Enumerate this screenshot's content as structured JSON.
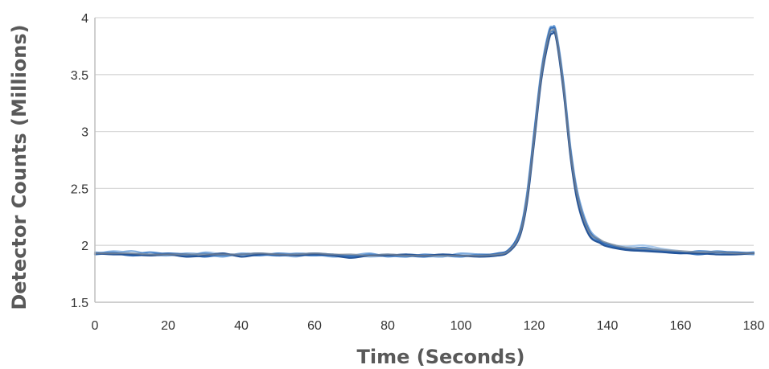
{
  "chart_data": {
    "type": "line",
    "title": "",
    "xlabel": "Time (Seconds)",
    "ylabel": "Detector Counts (Millions)",
    "xlim": [
      0,
      180
    ],
    "ylim": [
      1.5,
      4
    ],
    "x_ticks": [
      "0",
      "20",
      "40",
      "60",
      "80",
      "100",
      "120",
      "140",
      "160",
      "180"
    ],
    "y_ticks": [
      "1.5",
      "2",
      "2.5",
      "3",
      "3.5",
      "4"
    ],
    "grid": "horizontal",
    "legend": "none",
    "colors": [
      "#a3c4e8",
      "#7aa9dc",
      "#4a86cc",
      "#2e6bb8",
      "#1f4f95",
      "#8c8c8c"
    ],
    "series": [
      {
        "x": [
          0,
          5,
          10,
          15,
          20,
          25,
          30,
          35,
          40,
          45,
          50,
          55,
          60,
          65,
          70,
          75,
          80,
          85,
          90,
          95,
          100,
          105,
          110,
          113,
          116,
          118,
          120,
          122,
          124,
          125,
          126,
          128,
          130,
          132,
          135,
          138,
          140,
          145,
          150,
          155,
          160,
          165,
          170,
          175,
          180
        ],
        "values": [
          1.92,
          1.95,
          1.93,
          1.91,
          1.93,
          1.9,
          1.94,
          1.92,
          1.91,
          1.93,
          1.92,
          1.9,
          1.93,
          1.91,
          1.92,
          1.9,
          1.91,
          1.92,
          1.9,
          1.91,
          1.92,
          1.91,
          1.92,
          1.96,
          2.1,
          2.4,
          2.95,
          3.5,
          3.85,
          3.9,
          3.85,
          3.4,
          2.8,
          2.4,
          2.12,
          2.04,
          2.01,
          1.99,
          2.0,
          1.97,
          1.95,
          1.94,
          1.93,
          1.92,
          1.93
        ]
      },
      {
        "x": [
          0,
          5,
          10,
          15,
          20,
          25,
          30,
          35,
          40,
          45,
          50,
          55,
          60,
          65,
          70,
          75,
          80,
          85,
          90,
          95,
          100,
          105,
          110,
          113,
          116,
          118,
          120,
          122,
          124,
          125,
          126,
          128,
          130,
          132,
          135,
          138,
          140,
          145,
          150,
          155,
          160,
          165,
          170,
          175,
          180
        ],
        "values": [
          1.94,
          1.93,
          1.95,
          1.92,
          1.91,
          1.93,
          1.92,
          1.9,
          1.93,
          1.92,
          1.91,
          1.93,
          1.92,
          1.9,
          1.91,
          1.93,
          1.9,
          1.92,
          1.91,
          1.9,
          1.93,
          1.92,
          1.91,
          1.95,
          2.12,
          2.45,
          3.0,
          3.55,
          3.88,
          3.92,
          3.88,
          3.45,
          2.85,
          2.45,
          2.15,
          2.05,
          2.02,
          1.98,
          1.97,
          1.96,
          1.94,
          1.93,
          1.95,
          1.93,
          1.92
        ]
      },
      {
        "x": [
          0,
          5,
          10,
          15,
          20,
          25,
          30,
          35,
          40,
          45,
          50,
          55,
          60,
          65,
          70,
          75,
          80,
          85,
          90,
          95,
          100,
          105,
          110,
          113,
          116,
          118,
          120,
          122,
          124,
          125,
          126,
          128,
          130,
          132,
          135,
          138,
          140,
          145,
          150,
          155,
          160,
          165,
          170,
          175,
          180
        ],
        "values": [
          1.93,
          1.94,
          1.92,
          1.94,
          1.92,
          1.91,
          1.93,
          1.91,
          1.92,
          1.91,
          1.93,
          1.92,
          1.91,
          1.92,
          1.9,
          1.92,
          1.91,
          1.9,
          1.92,
          1.91,
          1.9,
          1.92,
          1.92,
          1.95,
          2.08,
          2.38,
          2.92,
          3.48,
          3.82,
          3.88,
          3.84,
          3.38,
          2.78,
          2.38,
          2.1,
          2.03,
          2.0,
          1.97,
          1.98,
          1.95,
          1.93,
          1.95,
          1.94,
          1.93,
          1.94
        ]
      },
      {
        "x": [
          0,
          5,
          10,
          15,
          20,
          25,
          30,
          35,
          40,
          45,
          50,
          55,
          60,
          65,
          70,
          75,
          80,
          85,
          90,
          95,
          100,
          105,
          110,
          113,
          116,
          118,
          120,
          122,
          124,
          125,
          126,
          128,
          130,
          132,
          135,
          138,
          140,
          145,
          150,
          155,
          160,
          165,
          170,
          175,
          180
        ],
        "values": [
          1.92,
          1.93,
          1.91,
          1.92,
          1.93,
          1.92,
          1.9,
          1.92,
          1.92,
          1.93,
          1.91,
          1.92,
          1.93,
          1.92,
          1.91,
          1.91,
          1.92,
          1.91,
          1.9,
          1.92,
          1.91,
          1.91,
          1.93,
          1.96,
          2.11,
          2.42,
          2.98,
          3.52,
          3.86,
          3.91,
          3.86,
          3.42,
          2.82,
          2.42,
          2.13,
          2.04,
          2.01,
          1.97,
          1.96,
          1.95,
          1.94,
          1.92,
          1.94,
          1.94,
          1.93
        ]
      },
      {
        "x": [
          0,
          5,
          10,
          15,
          20,
          25,
          30,
          35,
          40,
          45,
          50,
          55,
          60,
          65,
          70,
          75,
          80,
          85,
          90,
          95,
          100,
          105,
          110,
          113,
          116,
          118,
          120,
          122,
          124,
          125,
          126,
          128,
          130,
          132,
          135,
          138,
          140,
          145,
          150,
          155,
          160,
          165,
          170,
          175,
          180
        ],
        "values": [
          1.93,
          1.92,
          1.92,
          1.91,
          1.92,
          1.9,
          1.91,
          1.93,
          1.9,
          1.92,
          1.92,
          1.91,
          1.92,
          1.91,
          1.89,
          1.91,
          1.91,
          1.92,
          1.91,
          1.92,
          1.91,
          1.9,
          1.91,
          1.94,
          2.07,
          2.36,
          2.9,
          3.46,
          3.8,
          3.86,
          3.82,
          3.36,
          2.76,
          2.36,
          2.09,
          2.02,
          1.99,
          1.96,
          1.95,
          1.94,
          1.93,
          1.93,
          1.92,
          1.92,
          1.93
        ]
      },
      {
        "x": [
          0,
          5,
          10,
          15,
          20,
          25,
          30,
          35,
          40,
          45,
          50,
          55,
          60,
          65,
          70,
          75,
          80,
          85,
          90,
          95,
          100,
          105,
          110,
          113,
          116,
          118,
          120,
          122,
          124,
          125,
          126,
          128,
          130,
          132,
          135,
          138,
          140,
          145,
          150,
          155,
          160,
          165,
          170,
          175,
          180
        ],
        "values": [
          1.93,
          1.93,
          1.93,
          1.92,
          1.92,
          1.92,
          1.92,
          1.92,
          1.92,
          1.93,
          1.92,
          1.92,
          1.93,
          1.92,
          1.92,
          1.91,
          1.92,
          1.91,
          1.91,
          1.91,
          1.91,
          1.91,
          1.92,
          1.95,
          2.09,
          2.4,
          2.94,
          3.5,
          3.84,
          3.89,
          3.85,
          3.4,
          2.8,
          2.41,
          2.12,
          2.05,
          2.02,
          1.98,
          1.97,
          1.96,
          1.95,
          1.94,
          1.94,
          1.93,
          1.93
        ]
      }
    ]
  }
}
